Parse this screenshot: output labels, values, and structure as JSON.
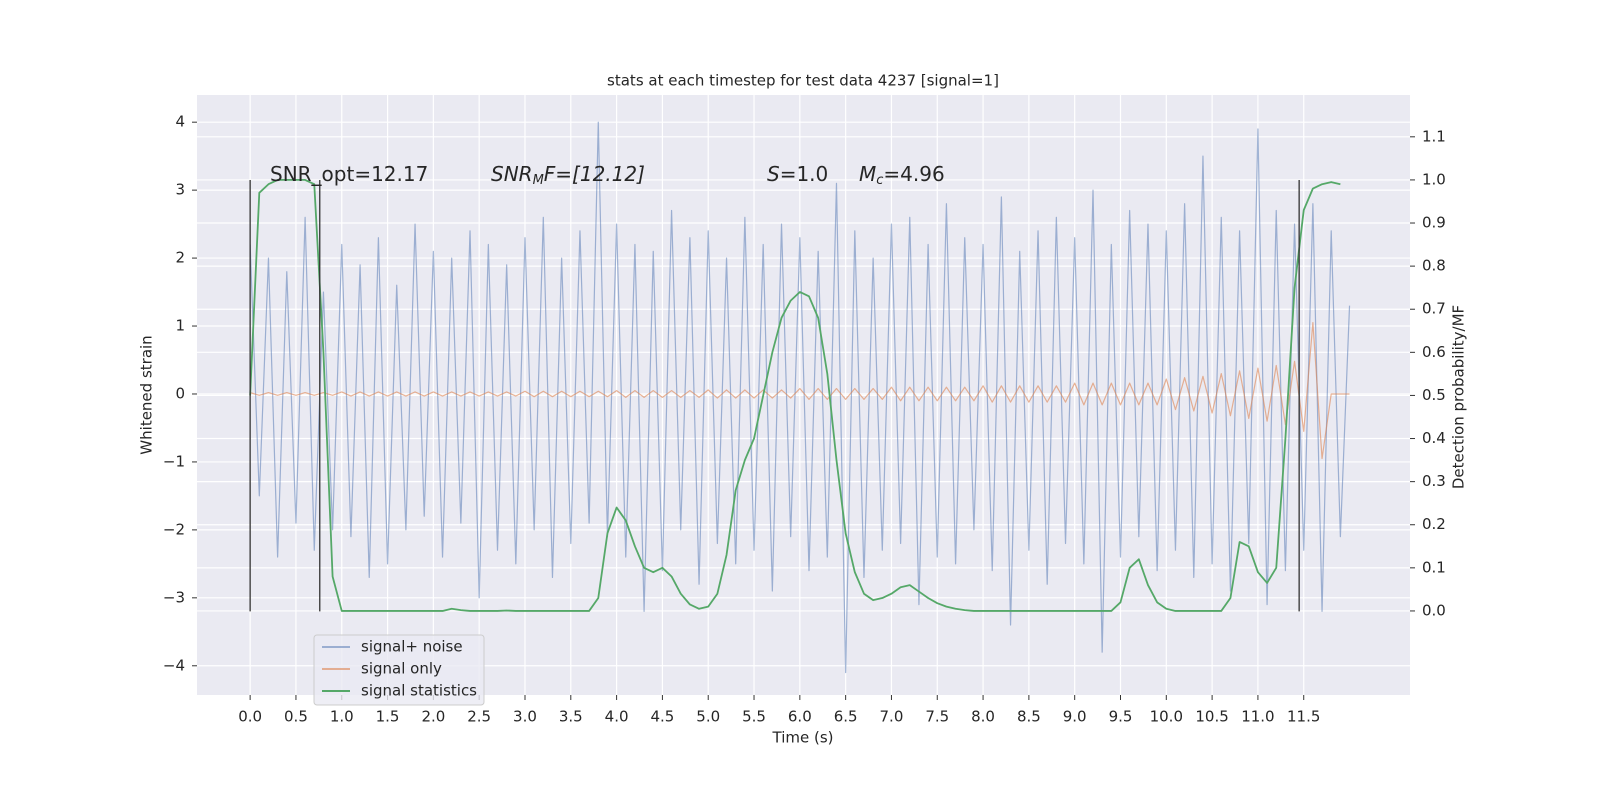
{
  "chart_data": {
    "type": "line",
    "title": "stats at each timestep for test data 4237 [signal=1]",
    "x_label": "Time (s)",
    "y_label": "Whitened strain",
    "y2_label": "Detection probability/MF",
    "xlim": [
      -0.58,
      12.66
    ],
    "ylim": [
      -4.43,
      4.4
    ],
    "y2lim": [
      -0.195,
      1.197
    ],
    "xticks": [
      {
        "value": 0,
        "label": "0.0"
      },
      {
        "value": 0.5,
        "label": "0.5"
      },
      {
        "value": 1,
        "label": "1.0"
      },
      {
        "value": 1.5,
        "label": "1.5"
      },
      {
        "value": 2,
        "label": "2.0"
      },
      {
        "value": 2.5,
        "label": "2.5"
      },
      {
        "value": 3,
        "label": "3.0"
      },
      {
        "value": 3.5,
        "label": "3.5"
      },
      {
        "value": 4,
        "label": "4.0"
      },
      {
        "value": 4.5,
        "label": "4.5"
      },
      {
        "value": 5,
        "label": "5.0"
      },
      {
        "value": 5.5,
        "label": "5.5"
      },
      {
        "value": 6,
        "label": "6.0"
      },
      {
        "value": 6.5,
        "label": "6.5"
      },
      {
        "value": 7,
        "label": "7.0"
      },
      {
        "value": 7.5,
        "label": "7.5"
      },
      {
        "value": 8,
        "label": "8.0"
      },
      {
        "value": 8.5,
        "label": "8.5"
      },
      {
        "value": 9,
        "label": "9.0"
      },
      {
        "value": 9.5,
        "label": "9.5"
      },
      {
        "value": 10,
        "label": "10.0"
      },
      {
        "value": 10.5,
        "label": "10.5"
      },
      {
        "value": 11,
        "label": "11.0"
      },
      {
        "value": 11.5,
        "label": "11.5"
      }
    ],
    "yticks": [
      {
        "value": -4,
        "label": "−4"
      },
      {
        "value": -3,
        "label": "−3"
      },
      {
        "value": -2,
        "label": "−2"
      },
      {
        "value": -1,
        "label": "−1"
      },
      0,
      1,
      2,
      3,
      4
    ],
    "y2ticks": [
      {
        "value": 0,
        "label": "0.0"
      },
      {
        "value": 0.1,
        "label": "0.1"
      },
      {
        "value": 0.2,
        "label": "0.2"
      },
      {
        "value": 0.3,
        "label": "0.3"
      },
      {
        "value": 0.4,
        "label": "0.4"
      },
      {
        "value": 0.5,
        "label": "0.5"
      },
      {
        "value": 0.6,
        "label": "0.6"
      },
      {
        "value": 0.7,
        "label": "0.7"
      },
      {
        "value": 0.8,
        "label": "0.8"
      },
      {
        "value": 0.9,
        "label": "0.9"
      },
      {
        "value": 1,
        "label": "1.0"
      },
      {
        "value": 1.1,
        "label": "1.1"
      }
    ],
    "grid": true,
    "legend": "lower left",
    "x": [
      0,
      0.1,
      0.2,
      0.3,
      0.4,
      0.5,
      0.6,
      0.7,
      0.8,
      0.9,
      1,
      1.1,
      1.2,
      1.3,
      1.4,
      1.5,
      1.6,
      1.7,
      1.8,
      1.9,
      2,
      2.1,
      2.2,
      2.3,
      2.4,
      2.5,
      2.6,
      2.7,
      2.8,
      2.9,
      3,
      3.1,
      3.2,
      3.3,
      3.4,
      3.5,
      3.6,
      3.7,
      3.8,
      3.9,
      4,
      4.1,
      4.2,
      4.3,
      4.4,
      4.5,
      4.6,
      4.7,
      4.8,
      4.9,
      5,
      5.1,
      5.2,
      5.3,
      5.4,
      5.5,
      5.6,
      5.7,
      5.8,
      5.9,
      6,
      6.1,
      6.2,
      6.3,
      6.4,
      6.5,
      6.6,
      6.7,
      6.8,
      6.9,
      7,
      7.1,
      7.2,
      7.3,
      7.4,
      7.5,
      7.6,
      7.7,
      7.8,
      7.9,
      8,
      8.1,
      8.2,
      8.3,
      8.4,
      8.5,
      8.6,
      8.7,
      8.8,
      8.9,
      9,
      9.1,
      9.2,
      9.3,
      9.4,
      9.5,
      9.6,
      9.7,
      9.8,
      9.9,
      10,
      10.1,
      10.2,
      10.3,
      10.4,
      10.5,
      10.6,
      10.7,
      10.8,
      10.9,
      11,
      11.1,
      11.2,
      11.3,
      11.4,
      11.5,
      11.6,
      11.7,
      11.8,
      11.9,
      12
    ],
    "series": [
      {
        "name": "signal+ noise",
        "color": "#4c72b0",
        "opacity": 0.5,
        "values": [
          2.2,
          -1.5,
          2.0,
          -2.4,
          1.8,
          -1.9,
          2.6,
          -2.3,
          1.5,
          -2.0,
          2.2,
          -2.1,
          1.9,
          -2.7,
          2.3,
          -2.5,
          1.6,
          -2.0,
          2.5,
          -1.8,
          2.1,
          -2.4,
          2.0,
          -1.9,
          2.4,
          -3.0,
          2.2,
          -2.3,
          1.9,
          -2.5,
          2.3,
          -2.0,
          2.6,
          -2.7,
          2.0,
          -2.2,
          2.4,
          -1.9,
          4.0,
          -2.1,
          2.5,
          -2.4,
          2.2,
          -3.2,
          2.1,
          -2.6,
          2.7,
          -2.0,
          2.3,
          -2.8,
          2.4,
          -2.2,
          2.0,
          -2.5,
          2.6,
          -2.3,
          2.2,
          -2.9,
          2.5,
          -2.1,
          2.3,
          -2.6,
          2.1,
          -2.4,
          3.1,
          -4.1,
          2.4,
          -2.7,
          2.0,
          -2.3,
          2.5,
          -2.2,
          2.6,
          -3.1,
          2.2,
          -2.4,
          2.8,
          -2.5,
          2.3,
          -2.0,
          2.2,
          -2.6,
          2.9,
          -3.4,
          2.1,
          -2.3,
          2.4,
          -2.8,
          2.6,
          -2.2,
          2.3,
          -2.5,
          3.0,
          -3.8,
          2.2,
          -2.4,
          2.7,
          -2.1,
          2.5,
          -2.6,
          2.4,
          -2.3,
          2.8,
          -2.7,
          3.5,
          -2.5,
          2.6,
          -2.9,
          2.4,
          -2.2,
          3.9,
          -3.1,
          2.7,
          -2.6,
          2.5,
          -2.3,
          2.8,
          -3.2,
          2.4,
          -2.1,
          1.3
        ]
      },
      {
        "name": "signal only",
        "color": "#dd8452",
        "opacity": 0.6,
        "values": [
          0.02,
          -0.02,
          0.02,
          -0.02,
          0.02,
          -0.02,
          0.02,
          -0.02,
          0.02,
          -0.02,
          0.03,
          -0.03,
          0.03,
          -0.03,
          0.03,
          -0.03,
          0.03,
          -0.03,
          0.03,
          -0.03,
          0.03,
          -0.03,
          0.03,
          -0.03,
          0.03,
          -0.03,
          0.03,
          -0.03,
          0.03,
          -0.03,
          0.04,
          -0.04,
          0.04,
          -0.04,
          0.04,
          -0.04,
          0.04,
          -0.04,
          0.04,
          -0.04,
          0.05,
          -0.05,
          0.05,
          -0.05,
          0.05,
          -0.05,
          0.05,
          -0.05,
          0.05,
          -0.05,
          0.06,
          -0.06,
          0.06,
          -0.06,
          0.06,
          -0.06,
          0.06,
          -0.06,
          0.06,
          -0.06,
          0.08,
          -0.08,
          0.08,
          -0.08,
          0.08,
          -0.08,
          0.08,
          -0.08,
          0.08,
          -0.08,
          0.1,
          -0.1,
          0.1,
          -0.1,
          0.1,
          -0.1,
          0.1,
          -0.1,
          0.1,
          -0.1,
          0.12,
          -0.12,
          0.12,
          -0.12,
          0.12,
          -0.12,
          0.12,
          -0.12,
          0.12,
          -0.12,
          0.16,
          -0.16,
          0.16,
          -0.16,
          0.16,
          -0.16,
          0.16,
          -0.16,
          0.16,
          -0.16,
          0.22,
          -0.23,
          0.24,
          -0.25,
          0.26,
          -0.28,
          0.3,
          -0.32,
          0.34,
          -0.36,
          0.38,
          -0.4,
          0.42,
          -0.45,
          0.48,
          -0.55,
          1.05,
          -0.95,
          0,
          0,
          0
        ]
      },
      {
        "name": "signal statistics",
        "color": "#55a868",
        "opacity": 1,
        "axis": "y2",
        "values": [
          0.5,
          0.97,
          0.99,
          1.0,
          1.0,
          1.0,
          1.0,
          0.99,
          0.6,
          0.08,
          0,
          0,
          0,
          0,
          0,
          0,
          0,
          0,
          0,
          0,
          0,
          0,
          0.005,
          0.002,
          0,
          0,
          0,
          0,
          0.001,
          0,
          0,
          0,
          0,
          0,
          0,
          0,
          0,
          0,
          0.03,
          0.18,
          0.24,
          0.21,
          0.15,
          0.1,
          0.09,
          0.1,
          0.08,
          0.04,
          0.015,
          0.005,
          0.01,
          0.04,
          0.13,
          0.28,
          0.35,
          0.4,
          0.5,
          0.6,
          0.68,
          0.72,
          0.74,
          0.73,
          0.68,
          0.55,
          0.35,
          0.18,
          0.09,
          0.04,
          0.025,
          0.03,
          0.04,
          0.055,
          0.06,
          0.045,
          0.03,
          0.018,
          0.01,
          0.005,
          0.002,
          0,
          0,
          0,
          0,
          0,
          0,
          0,
          0,
          0,
          0,
          0,
          0,
          0,
          0,
          0,
          0,
          0.02,
          0.1,
          0.12,
          0.06,
          0.02,
          0.005,
          0,
          0,
          0,
          0,
          0,
          0,
          0.03,
          0.16,
          0.15,
          0.09,
          0.065,
          0.1,
          0.4,
          0.75,
          0.93,
          0.98,
          0.99,
          0.995,
          0.99,
          null
        ]
      }
    ],
    "vlines": {
      "x": [
        0,
        0.76,
        11.45
      ],
      "ymin": -3.2,
      "ymax": 3.15,
      "color": "#333333"
    },
    "annotations": [
      {
        "parts": [
          "SNR_opt=12.17"
        ]
      },
      {
        "parts": [
          "SNR",
          "M",
          "F=[12.12]"
        ]
      },
      {
        "parts": [
          "S",
          "=1.0"
        ]
      },
      {
        "parts": [
          "M",
          "c",
          "=4.96"
        ]
      }
    ]
  }
}
